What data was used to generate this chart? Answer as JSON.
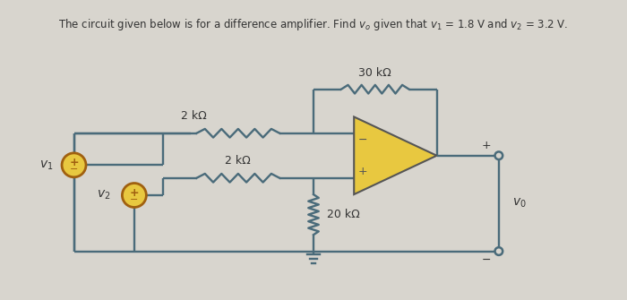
{
  "title": "The circuit given below is for a difference amplifier. Find $v_o$ given that $v_1$ = 1.8 V and $v_2$ = 3.2 V.",
  "bg_color": "#d8d5ce",
  "wire_color": "#4a6b7a",
  "opamp_fill": "#e8c840",
  "opamp_edge": "#555555",
  "source_fill": "#e8c840",
  "source_edge": "#a06010",
  "label_30k": "30 kΩ",
  "label_2k_top": "2 kΩ",
  "label_2k_mid": "2 kΩ",
  "label_20k": "20 kΩ",
  "label_v1": "$v_1$",
  "label_v2": "$v_2$",
  "label_vo": "$v_0$",
  "text_color": "#333333"
}
